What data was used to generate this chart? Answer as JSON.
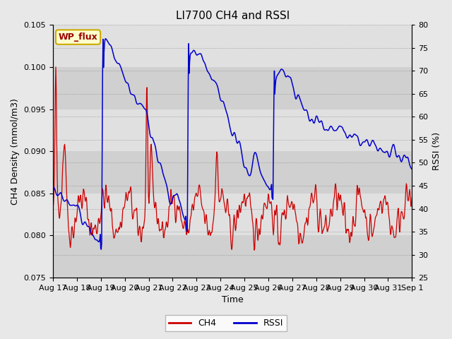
{
  "title": "LI7700 CH4 and RSSI",
  "xlabel": "Time",
  "ylabel_left": "CH4 Density (mmol/m3)",
  "ylabel_right": "RSSI (%)",
  "xlim_days": [
    0,
    15.5
  ],
  "ylim_left": [
    0.075,
    0.105
  ],
  "ylim_right": [
    25,
    80
  ],
  "yticks_left": [
    0.075,
    0.08,
    0.085,
    0.09,
    0.095,
    0.1,
    0.105
  ],
  "yticks_right": [
    25,
    30,
    35,
    40,
    45,
    50,
    55,
    60,
    65,
    70,
    75,
    80
  ],
  "xtick_labels": [
    "Aug 17",
    "Aug 18",
    "Aug 19",
    "Aug 20",
    "Aug 21",
    "Aug 22",
    "Aug 23",
    "Aug 24",
    "Aug 25",
    "Aug 26",
    "Aug 27",
    "Aug 28",
    "Aug 29",
    "Aug 30",
    "Aug 31",
    "Sep 1"
  ],
  "ch4_color": "#cc0000",
  "rssi_color": "#0000cc",
  "fig_bg": "#e8e8e8",
  "plot_bg": "#dcdcdc",
  "band_light": "#e0e0e0",
  "band_dark": "#d0d0d0",
  "legend_fc": "#ffffcc",
  "legend_ec": "#ccaa00",
  "annot_text": "WP_flux",
  "title_fs": 11,
  "label_fs": 9,
  "tick_fs": 8,
  "legend_fs": 9
}
